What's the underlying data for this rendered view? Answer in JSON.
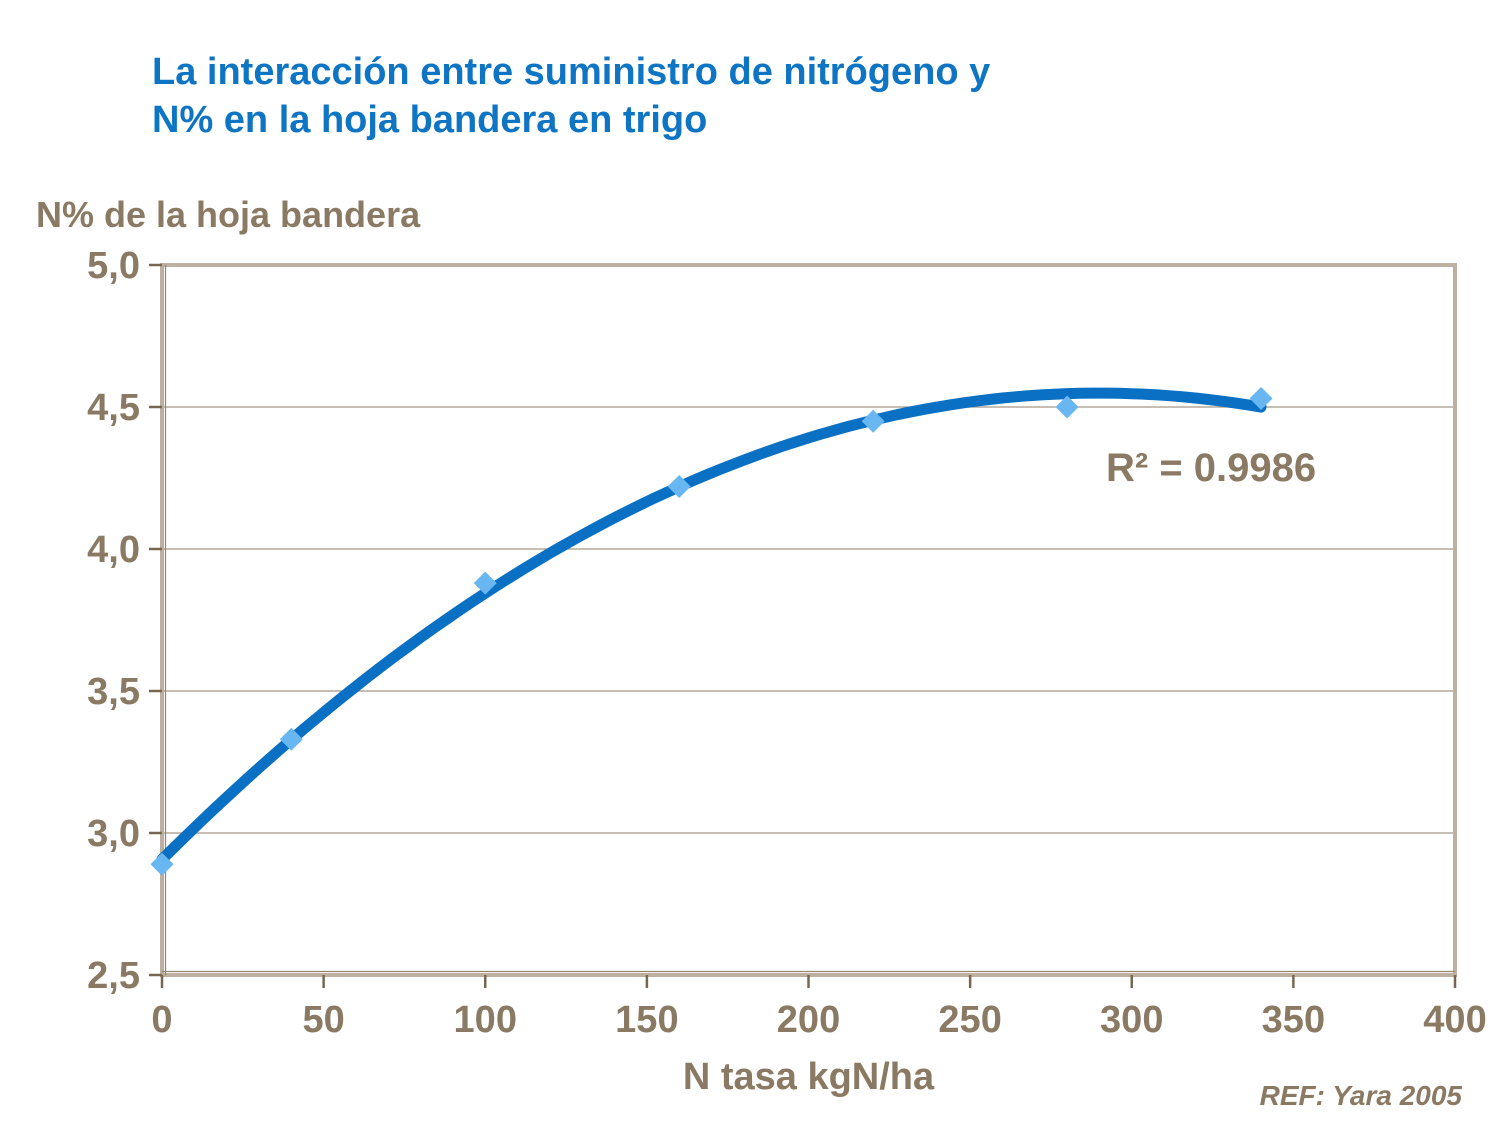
{
  "title": {
    "line1": "La interacción entre suministro de nitrógeno y",
    "line2": "N% en la hoja bandera en trigo"
  },
  "annotations": {
    "r_squared": "R² = 0.9986",
    "reference": "REF: Yara 2005"
  },
  "colors": {
    "title_blue": "#0e74c4",
    "text_brown": "#8a7963",
    "curve_blue": "#0a70c4",
    "point_blue": "#68b7f2",
    "gridline": "#a59683",
    "plot_border": "#bdb0a0",
    "axis_shadow": "#93826c",
    "tick_mark": "#776751"
  },
  "chart_data": {
    "type": "scatter",
    "title": "La interacción entre suministro de nitrógeno y N% en la hoja bandera en trigo",
    "xlabel": "N tasa kgN/ha",
    "ylabel": "N% de la hoja bandera",
    "x": [
      0,
      40,
      100,
      160,
      220,
      280,
      340
    ],
    "y": [
      2.89,
      3.33,
      3.88,
      4.22,
      4.45,
      4.5,
      4.53
    ],
    "trendline": {
      "kind": "quadratic",
      "r_squared": 0.9986,
      "x_start": 0,
      "x_end": 340
    },
    "xlim": [
      0,
      400
    ],
    "ylim": [
      2.5,
      5.0
    ],
    "x_tick_values": [
      0,
      50,
      100,
      150,
      200,
      250,
      300,
      350,
      400
    ],
    "x_tick_labels": [
      "0",
      "50",
      "100",
      "150",
      "200",
      "250",
      "300",
      "350",
      "400"
    ],
    "y_tick_values": [
      2.5,
      3.0,
      3.5,
      4.0,
      4.5,
      5.0
    ],
    "y_tick_labels": [
      "2,5",
      "3,0",
      "3,5",
      "4,0",
      "4,5",
      "5,0"
    ],
    "grid": "horizontal",
    "legend": "none"
  }
}
